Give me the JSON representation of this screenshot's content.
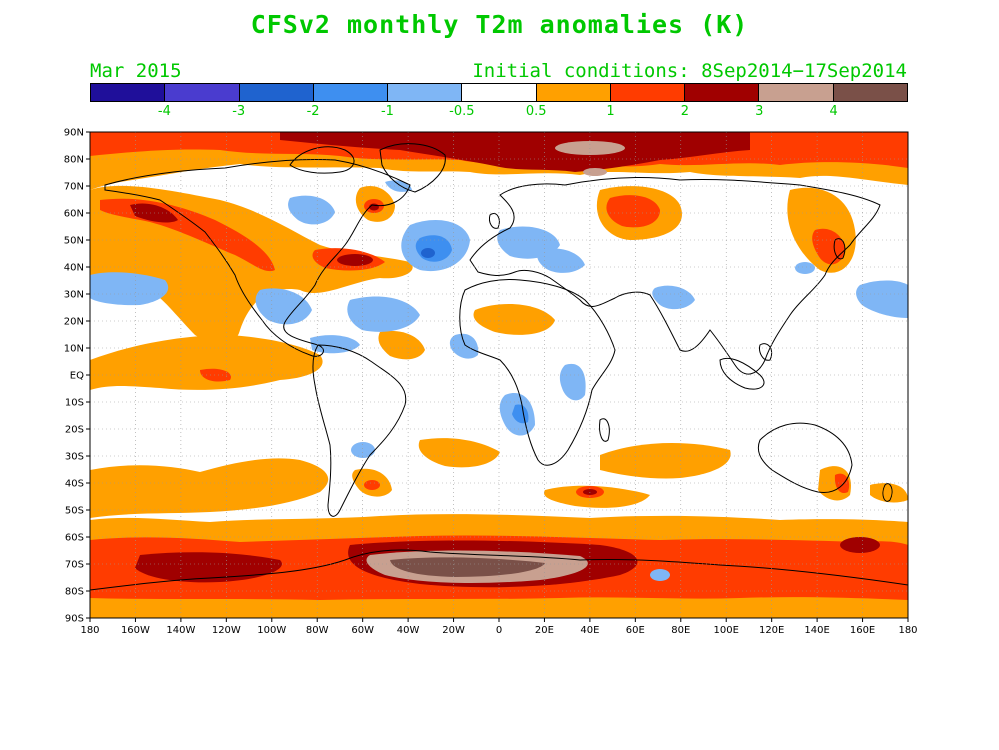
{
  "title": "CFSv2 monthly T2m anomalies (K)",
  "subtitle_left": "Mar 2015",
  "subtitle_right": "Initial conditions: 8Sep2014−17Sep2014",
  "colorbar": {
    "colors": [
      "#1f0f9a",
      "#4a3ccf",
      "#1f63cf",
      "#3e8ff0",
      "#7fb6f5",
      "#ffffff",
      "#ffa000",
      "#ff3c00",
      "#a00000",
      "#c8a090",
      "#7a5048"
    ],
    "labels": [
      "-4",
      "-3",
      "-2",
      "-1",
      "-0.5",
      "0.5",
      "1",
      "2",
      "3",
      "4"
    ]
  },
  "lat_labels": [
    "90N",
    "80N",
    "70N",
    "60N",
    "50N",
    "40N",
    "30N",
    "20N",
    "10N",
    "EQ",
    "10S",
    "20S",
    "30S",
    "40S",
    "50S",
    "60S",
    "70S",
    "80S",
    "90S"
  ],
  "lon_labels": [
    "180",
    "160W",
    "140W",
    "120W",
    "100W",
    "80W",
    "60W",
    "40W",
    "20W",
    "0",
    "20E",
    "40E",
    "60E",
    "80E",
    "100E",
    "120E",
    "140E",
    "160E",
    "180"
  ]
}
